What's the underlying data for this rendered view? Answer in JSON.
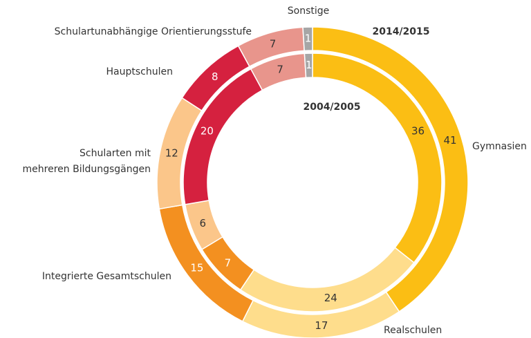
{
  "chart_data": {
    "type": "donut",
    "categories": [
      "Gymnasien",
      "Realschulen",
      "Integrierte Gesamtschulen",
      "Schularten mit\nmehreren Bildungsgängen",
      "Hauptschulen",
      "Schulartunabhängige Orientierungsstufe",
      "Sonstige"
    ],
    "colors": [
      "#fbbe14",
      "#fedd8c",
      "#f39020",
      "#fbc68a",
      "#d5213f",
      "#e8958c",
      "#a6a6a6"
    ],
    "series": [
      {
        "name": "2014/2015",
        "values": [
          41,
          17,
          15,
          12,
          8,
          7,
          1
        ]
      },
      {
        "name": "2004/2005",
        "values": [
          36,
          24,
          7,
          6,
          20,
          7,
          1
        ]
      }
    ]
  }
}
